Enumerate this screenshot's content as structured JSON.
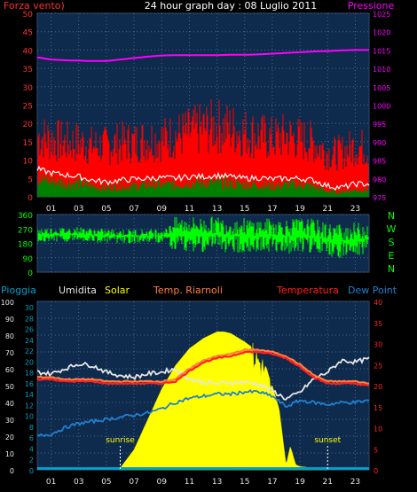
{
  "chart_data": [
    {
      "type": "line",
      "panel": "wind-pressure",
      "title": "24 hour graph day : 08 Luglio 2011",
      "left_label": "Forza vento)",
      "right_label": "Pressione",
      "x_ticks": [
        "01",
        "03",
        "05",
        "07",
        "09",
        "11",
        "13",
        "15",
        "17",
        "19",
        "21",
        "23"
      ],
      "y_left_ticks": [
        "0",
        "5",
        "10",
        "15",
        "20",
        "25",
        "30",
        "35",
        "40",
        "45",
        "50"
      ],
      "y_right_ticks": [
        "975",
        "980",
        "985",
        "990",
        "995",
        "1000",
        "1005",
        "1010",
        "1015",
        "1020",
        "1025"
      ],
      "ylim_left": [
        0,
        50
      ],
      "ylim_right": [
        975,
        1025
      ],
      "xlim": [
        0,
        24
      ],
      "grid": true,
      "colors": {
        "gust": "#ff0000",
        "wind": "#008000",
        "avg": "#ffffff",
        "pressure": "#ff00ff",
        "background": "#0e2a4c"
      },
      "series": [
        {
          "key": "pressure",
          "x": [
            0,
            1,
            2,
            3,
            4,
            5,
            6,
            7,
            8,
            9,
            10,
            11,
            12,
            13,
            14,
            15,
            16,
            17,
            18,
            19,
            20,
            21,
            22,
            23,
            24
          ],
          "values": [
            1013,
            1012.4,
            1012.2,
            1012.1,
            1012,
            1012,
            1012.4,
            1012.8,
            1013.2,
            1013.5,
            1013.6,
            1013.6,
            1013.6,
            1013.6,
            1013.7,
            1013.7,
            1013.8,
            1014,
            1014.2,
            1014.4,
            1014.6,
            1014.7,
            1014.9,
            1015,
            1015
          ]
        },
        {
          "key": "gust",
          "x": [
            0,
            1,
            2,
            3,
            4,
            5,
            6,
            7,
            8,
            9,
            10,
            11,
            12,
            13,
            14,
            15,
            16,
            17,
            18,
            19,
            20,
            21,
            22,
            23,
            24
          ],
          "values": [
            18,
            17,
            16,
            16,
            15,
            15,
            16,
            16,
            17,
            17,
            18,
            19,
            20,
            21,
            20,
            19,
            18,
            17,
            18,
            17,
            16,
            13,
            13,
            15,
            14
          ]
        },
        {
          "key": "avg",
          "x": [
            0,
            1,
            2,
            3,
            4,
            5,
            6,
            7,
            8,
            9,
            10,
            11,
            12,
            13,
            14,
            15,
            16,
            17,
            18,
            19,
            20,
            21,
            22,
            23,
            24
          ],
          "values": [
            7.5,
            6.5,
            6,
            5.5,
            4.5,
            4,
            4.5,
            4.8,
            5,
            5.2,
            5,
            5.5,
            5.5,
            5.8,
            5.5,
            5,
            5.2,
            4.8,
            5,
            5,
            4.5,
            3,
            2.5,
            3.5,
            3.5
          ]
        },
        {
          "key": "wind",
          "x": [
            0,
            1,
            2,
            3,
            4,
            5,
            6,
            7,
            8,
            9,
            10,
            11,
            12,
            13,
            14,
            15,
            16,
            17,
            18,
            19,
            20,
            21,
            22,
            23,
            24
          ],
          "values": [
            5,
            4.5,
            4,
            4,
            3,
            2.5,
            3,
            3,
            3.5,
            3.5,
            3.5,
            4,
            4,
            4,
            3.8,
            3.5,
            3.5,
            3,
            3.5,
            3.5,
            3,
            1.5,
            1.5,
            2,
            2
          ]
        }
      ]
    },
    {
      "type": "line",
      "panel": "wind-direction",
      "y_ticks": [
        "360",
        "270",
        "180",
        "90",
        "0"
      ],
      "right_labels": [
        "N",
        "W",
        "S",
        "E",
        "N"
      ],
      "ylim": [
        0,
        360
      ],
      "colors": {
        "direction": "#00ff00"
      },
      "series": [
        {
          "key": "direction",
          "x": [
            0,
            1,
            2,
            3,
            4,
            5,
            6,
            7,
            8,
            9,
            10,
            11,
            12,
            13,
            14,
            15,
            16,
            17,
            18,
            19,
            20,
            21,
            22,
            23,
            24
          ],
          "values": [
            230,
            235,
            235,
            240,
            230,
            225,
            225,
            225,
            225,
            230,
            235,
            240,
            235,
            240,
            230,
            230,
            225,
            230,
            225,
            230,
            225,
            200,
            195,
            200,
            210
          ]
        }
      ]
    },
    {
      "type": "line",
      "panel": "rain-humidity-solar-temp",
      "legend": [
        {
          "label": "Pioggia",
          "color": "#00a0c8"
        },
        {
          "label": "Umidita",
          "color": "#e6e6e6"
        },
        {
          "label": "Solar",
          "color": "#ffff00"
        },
        {
          "label": "Temp. Riarnoli",
          "color": "#ff8040"
        },
        {
          "label": "Temperatura",
          "color": "#ff2020"
        },
        {
          "label": "Dew Point",
          "color": "#2080d0"
        }
      ],
      "x_ticks": [
        "01",
        "03",
        "05",
        "07",
        "09",
        "11",
        "13",
        "15",
        "17",
        "19",
        "21",
        "23"
      ],
      "y_left1_ticks": [
        "0",
        "10",
        "20",
        "30",
        "40",
        "50",
        "60",
        "70",
        "80",
        "90",
        "100"
      ],
      "y_left2_ticks": [
        "0",
        "2",
        "4",
        "6",
        "8",
        "10",
        "12",
        "14",
        "16",
        "18",
        "20",
        "22",
        "24",
        "26",
        "28",
        "30"
      ],
      "y_right_ticks": [
        "0",
        "5",
        "10",
        "15",
        "20",
        "25",
        "30",
        "35",
        "40"
      ],
      "ylim_left1": [
        0,
        100
      ],
      "ylim_right": [
        0,
        40
      ],
      "annotations": [
        {
          "text": "sunrise",
          "x": 6
        },
        {
          "text": "sunset",
          "x": 21
        }
      ],
      "series": [
        {
          "key": "solar",
          "x": [
            5.9,
            7,
            8,
            9,
            10,
            11,
            12,
            13,
            13.5,
            14,
            15,
            16,
            16.5,
            17,
            17.5,
            17.8,
            18,
            18.3,
            18.7,
            19,
            20,
            21
          ],
          "values": [
            0,
            12,
            30,
            48,
            62,
            72,
            78,
            82,
            82,
            81,
            76,
            70,
            62,
            50,
            36,
            16,
            3,
            14,
            3,
            2,
            1,
            0
          ]
        },
        {
          "key": "temp_riarnoli",
          "x": [
            0,
            1,
            2,
            3,
            4,
            5,
            6,
            7,
            8,
            9,
            10,
            11,
            12,
            13,
            14,
            15,
            16,
            17,
            18,
            19,
            20,
            21,
            22,
            23,
            24
          ],
          "values": [
            22,
            22,
            21.5,
            21.5,
            21.5,
            21,
            21,
            21,
            21,
            21,
            21.5,
            24,
            26,
            27,
            27.5,
            28.5,
            28.5,
            28,
            27,
            25,
            22.5,
            21,
            21,
            21,
            20.5
          ]
        },
        {
          "key": "temperatura",
          "x": [
            0,
            1,
            2,
            3,
            4,
            5,
            6,
            7,
            8,
            9,
            10,
            11,
            12,
            13,
            14,
            15,
            16,
            17,
            18,
            19,
            20,
            21,
            22,
            23,
            24
          ],
          "values": [
            21.5,
            21.5,
            21,
            21,
            21,
            20.5,
            20.5,
            20.5,
            20.5,
            20.5,
            21,
            23.5,
            25.5,
            26.5,
            27,
            28,
            28,
            27.5,
            26.5,
            24.5,
            22,
            20.5,
            20.5,
            20.5,
            20
          ]
        },
        {
          "key": "umidita",
          "x": [
            0,
            1,
            2,
            3,
            4,
            5,
            6,
            7,
            8,
            9,
            10,
            11,
            12,
            13,
            14,
            15,
            16,
            17,
            18,
            19,
            20,
            21,
            22,
            23,
            24
          ],
          "values": [
            58,
            57,
            60,
            63,
            62,
            58,
            56,
            55,
            57,
            58,
            60,
            54,
            52,
            51,
            52,
            52,
            51,
            47,
            42,
            46,
            54,
            58,
            65,
            64,
            66
          ]
        },
        {
          "key": "dew_point",
          "x": [
            0,
            1,
            2,
            3,
            4,
            5,
            6,
            7,
            8,
            9,
            10,
            11,
            12,
            13,
            14,
            15,
            16,
            17,
            18,
            19,
            20,
            21,
            22,
            23,
            24
          ],
          "values": [
            8,
            8.5,
            10,
            11,
            11.5,
            12,
            12.5,
            13,
            13.5,
            14.5,
            16,
            17,
            17.5,
            18,
            18,
            18.5,
            18.5,
            17.5,
            15,
            16.5,
            16,
            15.5,
            16,
            16,
            16.5
          ]
        },
        {
          "key": "pioggia",
          "x": [
            0,
            24
          ],
          "values": [
            0,
            0
          ]
        }
      ]
    }
  ]
}
